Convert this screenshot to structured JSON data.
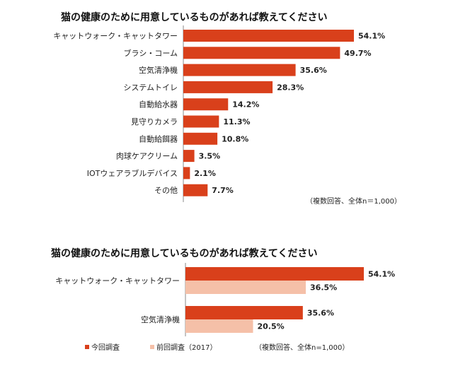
{
  "chart_data": [
    {
      "type": "bar",
      "orientation": "horizontal",
      "title": "猫の健康のために用意しているものがあれば教えてください",
      "categories": [
        "キャットウォーク・キャットタワー",
        "ブラシ・コーム",
        "空気清浄機",
        "システムトイレ",
        "自動給水器",
        "見守りカメラ",
        "自動給餌器",
        "肉球ケアクリーム",
        "IOTウェアラブルデバイス",
        "その他"
      ],
      "values": [
        54.1,
        49.7,
        35.6,
        28.3,
        14.2,
        11.3,
        10.8,
        3.5,
        2.1,
        7.7
      ],
      "value_labels": [
        "54.1%",
        "49.7%",
        "35.6%",
        "28.3%",
        "14.2%",
        "11.3%",
        "10.8%",
        "3.5%",
        "2.1%",
        "7.7%"
      ],
      "color": "#d9401b",
      "xlim": [
        0,
        60
      ],
      "note": "（複数回答、全体n＝1,000）",
      "grid": false
    },
    {
      "type": "bar",
      "orientation": "horizontal",
      "title": "猫の健康のために用意しているものがあれば教えてください",
      "categories": [
        "キャットウォーク・キャットタワー",
        "空気清浄機"
      ],
      "series": [
        {
          "name": "今回調査",
          "values": [
            54.1,
            35.6
          ],
          "value_labels": [
            "54.1%",
            "35.6%"
          ],
          "color": "#d9401b"
        },
        {
          "name": "前回調査（2017）",
          "values": [
            36.5,
            20.5
          ],
          "value_labels": [
            "36.5%",
            "20.5%"
          ],
          "color": "#f5c0a8"
        }
      ],
      "xlim": [
        0,
        60
      ],
      "legend": "bottom-left",
      "note": "（複数回答、全体n=1,000）",
      "grid": false
    }
  ]
}
